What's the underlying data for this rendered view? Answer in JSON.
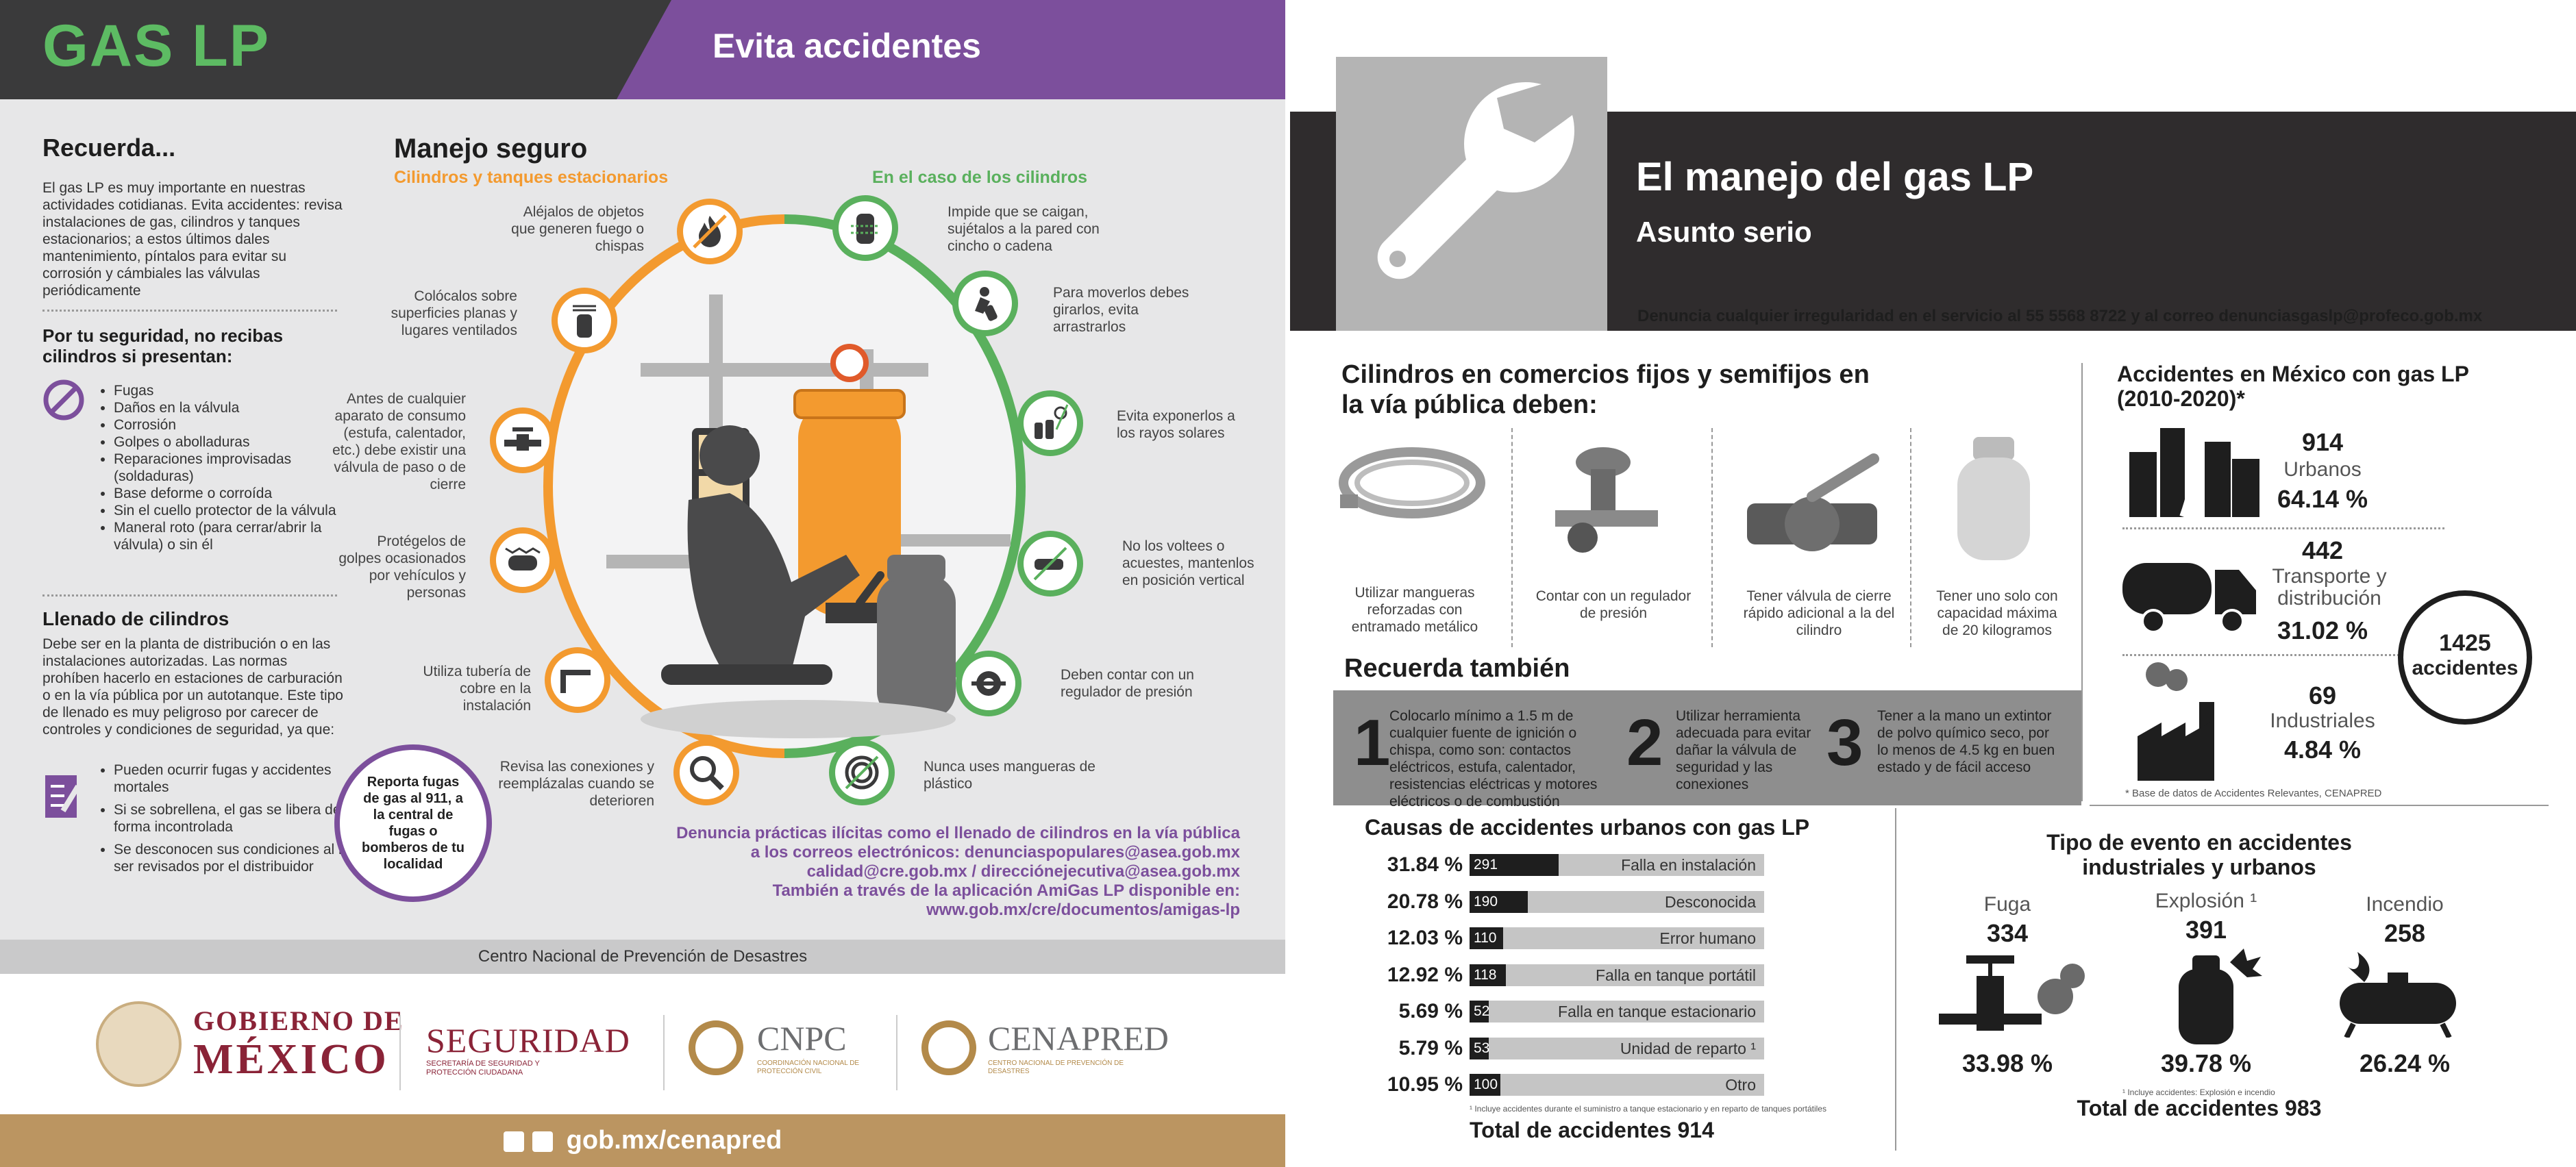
{
  "left": {
    "title": "GAS LP",
    "subtitle": "Evita accidentes",
    "recuerda": {
      "heading": "Recuerda...",
      "text": "El gas LP es muy importante en nuestras actividades cotidianas. Evita accidentes: revisa instalaciones de gas, cilindros y tanques estacionarios; a estos últimos dales mantenimiento, píntalos para evitar su corrosión y cámbiales las válvulas periódicamente"
    },
    "no_recibas": {
      "heading": "Por tu seguridad, no recibas cilindros si presentan:",
      "items": [
        "Fugas",
        "Daños en la válvula",
        "Corrosión",
        "Golpes o abolladuras",
        "Reparaciones improvisadas (soldaduras)",
        "Base deforme o corroída",
        "Sin el cuello protector de la válvula",
        "Maneral roto (para cerrar/abrir la válvula) o sin él"
      ]
    },
    "llenado": {
      "heading": "Llenado de cilindros",
      "text": "Debe ser en la planta de distribución o en las instalaciones autorizadas. Las normas prohíben hacerlo en estaciones de carburación o en la vía pública por un autotanque. Este tipo de llenado es muy peligroso por carecer de controles y condiciones de seguridad, ya que:",
      "items": [
        "Pueden ocurrir fugas y accidentes mortales",
        "Si se sobrellena, el gas se libera de forma incontrolada",
        "Se desconocen sus condiciones al no ser revisados por el distribuidor"
      ]
    },
    "manejo": {
      "heading": "Manejo seguro",
      "sub_tanques": "Cilindros y tanques estacionarios",
      "sub_cilindros": "En el caso de los cilindros",
      "tips_left": [
        "Aléjalos de objetos que generen fuego o chispas",
        "Colócalos sobre superficies planas y lugares ventilados",
        "Antes de cualquier aparato de consumo (estufa, calentador, etc.) debe existir una válvula de paso o de cierre",
        "Protégelos de golpes ocasionados por vehículos y personas",
        "Utiliza tubería de cobre en la instalación",
        "Revisa las conexiones y reemplázalas cuando se deterioren"
      ],
      "tips_right": [
        "Impide que se caigan, sujétalos a la pared con cincho o cadena",
        "Para moverlos debes girarlos, evita arrastrarlos",
        "Evita exponerlos a los rayos solares",
        "No los voltees o acuestes, mantenlos en posición vertical",
        "Deben contar con un regulador de presión",
        "Nunca uses mangueras de plástico"
      ]
    },
    "reporta": "Reporta fugas de gas al 911, a la central de fugas o bomberos de tu localidad",
    "denuncia": [
      "Denuncia prácticas ilícitas como el llenado de cilindros en la vía pública",
      "a los correos electrónicos: denunciaspopulares@asea.gob.mx",
      "calidad@cre.gob.mx  /  direcciónejecutiva@asea.gob.mx",
      "También a través de la aplicación AmiGas LP disponible en:",
      "www.gob.mx/cre/documentos/amigas-lp"
    ],
    "footer_cnpc": "Centro Nacional de Prevención de Desastres",
    "logos": {
      "gob1": "GOBIERNO DE",
      "gob2": "MÉXICO",
      "seg": "SEGURIDAD",
      "seg_sub": "SECRETARÍA DE SEGURIDAD Y PROTECCIÓN CIUDADANA",
      "cnpc": "CNPC",
      "cnpc_sub": "COORDINACIÓN NACIONAL DE PROTECCIÓN CIVIL",
      "cenapred": "CENAPRED",
      "cenapred_sub": "CENTRO NACIONAL DE PREVENCIÓN DE DESASTRES"
    },
    "social": "gob.mx/cenapred",
    "colors": {
      "orange": "#f39a2f",
      "green": "#5ab05d",
      "purple": "#7c4f9c",
      "gold": "#bb9561"
    }
  },
  "right": {
    "title": "El manejo del gas LP",
    "subtitle": "Asunto serio",
    "denuncia": "Denuncia cualquier irregularidad en el servicio al 55 5568 8722 y al correo denunciasgaslp@profeco.gob.mx",
    "cilindros_heading": "Cilindros en comercios fijos y semifijos en la vía pública deben:",
    "requisitos": [
      "Utilizar mangueras reforzadas con entramado metálico",
      "Contar con un regulador de presión",
      "Tener válvula de cierre rápido adicional a la del cilindro",
      "Tener uno solo con capacidad máxima de 20 kilogramos"
    ],
    "recuerda_heading": "Recuerda también",
    "recuerda_items": [
      {
        "num": "1",
        "text": "Colocarlo mínimo a 1.5 m de cualquier fuente de ignición o chispa, como son: contactos eléctricos, estufa, calentador, resistencias eléctricas y motores eléctricos o de combustión"
      },
      {
        "num": "2",
        "text": "Utilizar herramienta adecuada para evitar dañar la válvula de seguridad y las conexiones"
      },
      {
        "num": "3",
        "text": "Tener a la mano un extintor de polvo químico seco, por lo menos de 4.5 kg en buen estado y de fácil acceso"
      }
    ],
    "accidentes": {
      "heading": "Accidentes en México con gas LP (2010-2020)*",
      "items": [
        {
          "value": "914",
          "label": "Urbanos",
          "pct": "64.14 %"
        },
        {
          "value": "442",
          "label": "Transporte y distribución",
          "pct": "31.02 %"
        },
        {
          "value": "69",
          "label": "Industriales",
          "pct": "4.84 %"
        }
      ],
      "total_num": "1425",
      "total_label": "accidentes",
      "note": "* Base de datos de Accidentes Relevantes, CENAPRED"
    },
    "causas": {
      "heading": "Causas de accidentes urbanos con gas LP",
      "note": "¹ Incluye accidentes durante el suministro a tanque estacionario y en reparto de tanques portátiles",
      "total": "Total de accidentes 914"
    },
    "tipo": {
      "heading": "Tipo de evento en accidentes industriales y urbanos",
      "items": [
        {
          "label": "Fuga",
          "value": "334",
          "pct": "33.98 %"
        },
        {
          "label": "Explosión ¹",
          "value": "391",
          "pct": "39.78 %"
        },
        {
          "label": "Incendio",
          "value": "258",
          "pct": "26.24 %"
        }
      ],
      "note": "¹ Incluye accidentes: Explosión e incendio",
      "total": "Total de accidentes 983"
    }
  },
  "chart_data": {
    "type": "bar",
    "title": "Causas de accidentes urbanos con gas LP",
    "categories": [
      "Falla en instalación",
      "Desconocida",
      "Error humano",
      "Falla en tanque portátil",
      "Falla en tanque estacionario",
      "Unidad de reparto ¹",
      "Otro"
    ],
    "values": [
      291,
      190,
      110,
      118,
      52,
      53,
      100
    ],
    "percent_labels": [
      "31.84 %",
      "20.78 %",
      "12.03 %",
      "12.92 %",
      "5.69 %",
      "5.79 %",
      "10.95 %"
    ],
    "xlim": [
      0,
      914
    ],
    "orientation": "horizontal",
    "colors": {
      "fill": "#1e1e1e",
      "track": "#c5c5c5"
    }
  }
}
